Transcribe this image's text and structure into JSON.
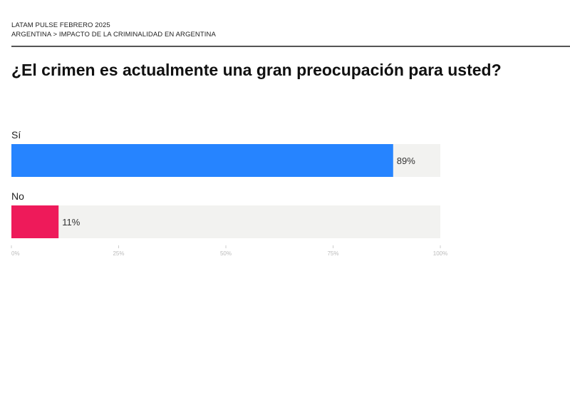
{
  "header": {
    "source": "LATAM PULSE  FEBRERO 2025",
    "breadcrumb": "ARGENTINA > IMPACTO DE LA CRIMINALIDAD EN ARGENTINA"
  },
  "chart_data": {
    "type": "bar",
    "orientation": "horizontal",
    "title": "¿El crimen es actualmente una gran preocupación para usted?",
    "categories": [
      "Sí",
      "No"
    ],
    "values": [
      89,
      11
    ],
    "data_labels": [
      "89%",
      "11%"
    ],
    "colors": [
      "#2684ff",
      "#ee1a5a"
    ],
    "track_color": "#f2f2f0",
    "xlim": [
      0,
      100
    ],
    "xticks": [
      0,
      25,
      50,
      75,
      100
    ],
    "xtick_labels": [
      "0%",
      "25%",
      "50%",
      "75%",
      "100%"
    ],
    "grid": false
  }
}
